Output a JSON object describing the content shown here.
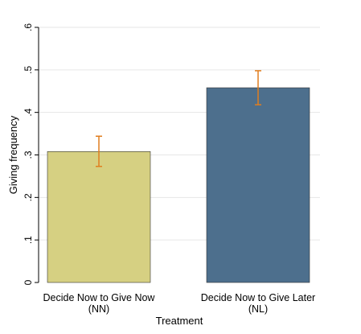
{
  "chart_data": {
    "type": "bar",
    "title": "",
    "xlabel": "Treatment",
    "ylabel": "Giving frequency",
    "ylim": [
      0,
      0.6
    ],
    "yticks": [
      0,
      0.1,
      0.2,
      0.3,
      0.4,
      0.5,
      0.6
    ],
    "ytick_labels": [
      "0",
      ".1",
      ".2",
      ".3",
      ".4",
      ".5",
      ".6"
    ],
    "grid": true,
    "categories": [
      {
        "line1": "Decide Now to Give Now",
        "line2": "(NN)"
      },
      {
        "line1": "Decide Now to Give Later",
        "line2": "(NL)"
      }
    ],
    "values": [
      0.308,
      0.458
    ],
    "error_bars": [
      {
        "low": 0.273,
        "high": 0.344
      },
      {
        "low": 0.418,
        "high": 0.498
      }
    ],
    "bar_colors": [
      "#d6d082",
      "#4d6f8d"
    ],
    "error_bar_color": "#e07e1f"
  }
}
